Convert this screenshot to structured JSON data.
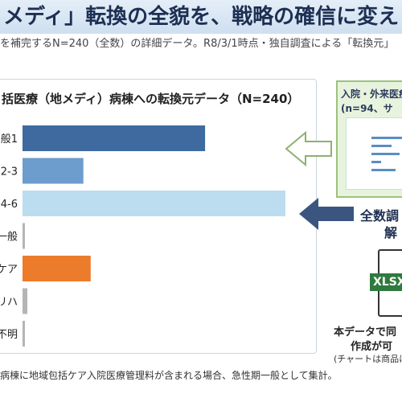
{
  "chart_data": {
    "type": "bar",
    "orientation": "horizontal",
    "title": "括医療（地メディ）病棟への転換元データ（N=240）",
    "categories": [
      "般1",
      "2-3",
      "4-6",
      "一般",
      "ケア",
      "リハ",
      "不明"
    ],
    "values": [
      75,
      25,
      108,
      1,
      28,
      2,
      1
    ],
    "colors": [
      "#3e6a9f",
      "#6c9dcd",
      "#bcdcf0",
      "#b5b5b5",
      "#ec7b2c",
      "#b5b5b5",
      "#b5b5b5"
    ]
  },
  "slide": {
    "title": "メディ」転換の全貌を、戦略の確信に変え",
    "subtitle": "を補完するN=240（全数）の詳細データ。R8/3/1時点・独自調査による「転換元」",
    "side_title": "入院・外来医療",
    "side_sub": "(n=94、サ",
    "side_label1": "全数調",
    "side_label2": "解",
    "file": "XLSX",
    "note1": "本データで同",
    "note2": "作成が可",
    "note3": "(チャートは商品に",
    "footnote": "病棟に地域包括ケア入院医療管理料が含まれる場合、急性期一般として集計。"
  }
}
